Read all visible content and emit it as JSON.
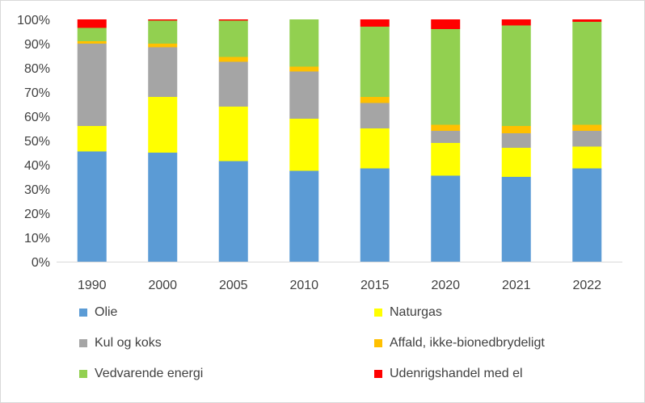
{
  "chart_data": {
    "type": "bar",
    "stacked": true,
    "percent": true,
    "categories": [
      "1990",
      "2000",
      "2005",
      "2010",
      "2015",
      "2020",
      "2021",
      "2022"
    ],
    "y_ticks": [
      "0%",
      "10%",
      "20%",
      "30%",
      "40%",
      "50%",
      "60%",
      "70%",
      "80%",
      "90%",
      "100%"
    ],
    "ylim": [
      0,
      100
    ],
    "grid": false,
    "legend_position": "bottom",
    "series": [
      {
        "name": "Olie",
        "color": "#5b9bd5",
        "values": [
          45.5,
          45,
          41.5,
          37.5,
          38.5,
          35.5,
          35,
          38.5
        ]
      },
      {
        "name": "Naturgas",
        "color": "#ffff00",
        "values": [
          10.5,
          23,
          22.5,
          21.5,
          16.5,
          13.5,
          12,
          9
        ]
      },
      {
        "name": "Kul og koks",
        "color": "#a5a5a5",
        "values": [
          34,
          20.5,
          18.5,
          19.5,
          10.5,
          5,
          6,
          6.5
        ]
      },
      {
        "name": "Affald, ikke-bionedbrydeligt",
        "color": "#ffc000",
        "values": [
          1,
          1.5,
          2,
          2,
          2.5,
          2.5,
          3,
          2.5
        ]
      },
      {
        "name": "Vedvarende energi",
        "color": "#92d050",
        "values": [
          5.5,
          9.5,
          15,
          19.5,
          29,
          39.5,
          41.5,
          42.5
        ]
      },
      {
        "name": "Udenrigshandel med el",
        "color": "#ff0000",
        "values": [
          3.5,
          0.5,
          0.5,
          0,
          3,
          4,
          2.5,
          1
        ]
      }
    ]
  }
}
